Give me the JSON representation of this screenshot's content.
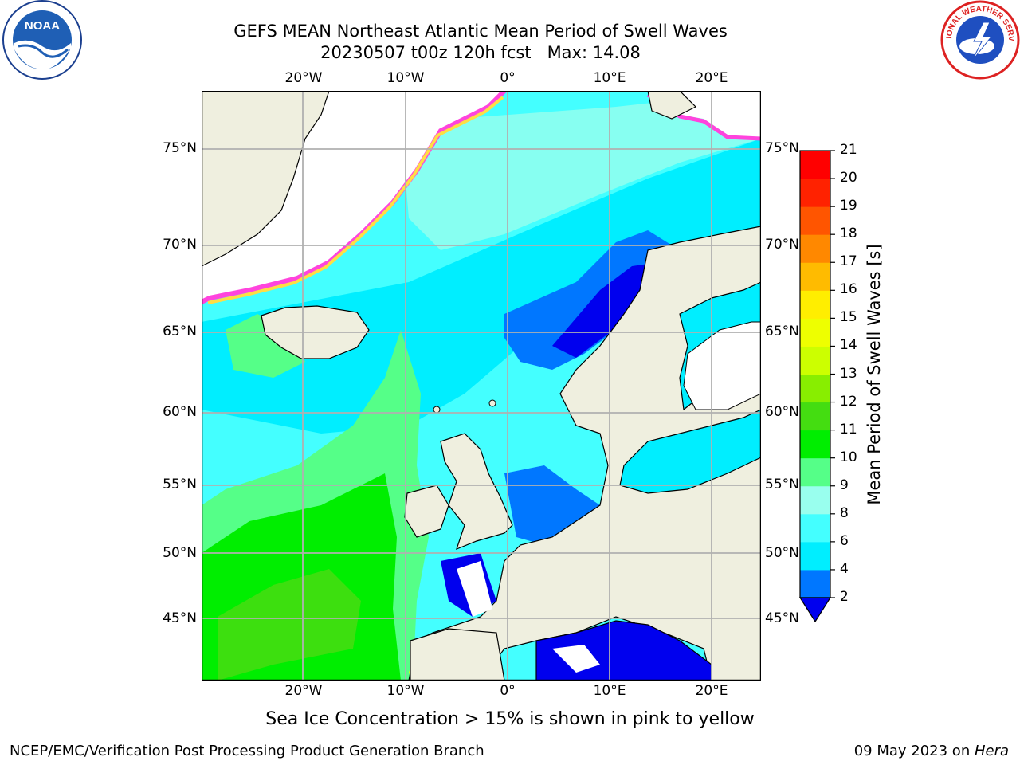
{
  "title": {
    "line1": "GEFS MEAN Northeast Atlantic Mean Period of Swell Waves",
    "line2": "20230507 t00z 120h fcst   Max: 14.08"
  },
  "logos": {
    "noaa": {
      "icon": "noaa-logo",
      "text": "NOAA"
    },
    "nws": {
      "icon": "nws-logo",
      "text": "NATIONAL WEATHER SERVICE"
    }
  },
  "map": {
    "lon_labels": [
      "20°W",
      "10°W",
      "0°",
      "10°E",
      "20°E"
    ],
    "lat_labels": [
      "75°N",
      "70°N",
      "65°N",
      "60°N",
      "55°N",
      "50°N",
      "45°N"
    ],
    "colors": {
      "land": "#efefdf",
      "ice": "#ffffff",
      "gridline": "#b0b0b0",
      "coast": "#000000"
    }
  },
  "colorbar": {
    "label": "Mean Period of Swell Waves [s]",
    "ticks": [
      "2",
      "4",
      "6",
      "8",
      "9",
      "10",
      "11",
      "12",
      "13",
      "14",
      "15",
      "16",
      "17",
      "18",
      "19",
      "20",
      "21"
    ],
    "colors": [
      "#0000ee",
      "#0077ff",
      "#00eeff",
      "#44ffff",
      "#99ffee",
      "#55ff88",
      "#00ee00",
      "#44dd11",
      "#88ee00",
      "#ccff00",
      "#eeff00",
      "#ffee00",
      "#ffbb00",
      "#ff8800",
      "#ff5500",
      "#ff2200",
      "#ff0000"
    ]
  },
  "footnote": "Sea Ice Concentration > 15% is shown in pink to yellow",
  "credit_left": "NCEP/EMC/Verification Post Processing Product Generation Branch",
  "credit_date": "09 May 2023 on ",
  "credit_machine": "Hera"
}
